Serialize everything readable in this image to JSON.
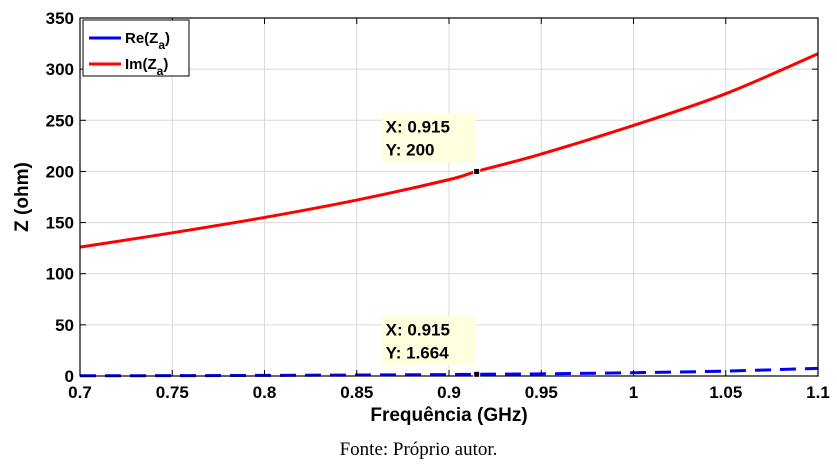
{
  "chart_data": {
    "type": "line",
    "xlabel": "Frequência (GHz)",
    "ylabel": "Z (ohm)",
    "xlim": [
      0.7,
      1.1
    ],
    "ylim": [
      0,
      350
    ],
    "xticks": [
      "0.7",
      "0.75",
      "0.8",
      "0.85",
      "0.9",
      "0.95",
      "1",
      "1.05",
      "1.1"
    ],
    "yticks": [
      "0",
      "50",
      "100",
      "150",
      "200",
      "250",
      "300",
      "350"
    ],
    "grid": true,
    "legend_position": "top-left",
    "series": [
      {
        "name": "Re(Z_a)",
        "name_base": "Re(Z",
        "name_sub": "a",
        "name_end": ")",
        "color": "#0000ff",
        "style": "dashed",
        "x": [
          0.7,
          0.75,
          0.8,
          0.85,
          0.9,
          0.915,
          0.95,
          1.0,
          1.05,
          1.1
        ],
        "y": [
          0.2,
          0.35,
          0.6,
          0.95,
          1.4,
          1.664,
          2.1,
          3.2,
          4.8,
          7.5
        ]
      },
      {
        "name": "Im(Z_a)",
        "name_base": "Im(Z",
        "name_sub": "a",
        "name_end": ")",
        "color": "#ff0000",
        "style": "solid",
        "x": [
          0.7,
          0.75,
          0.8,
          0.85,
          0.9,
          0.915,
          0.95,
          1.0,
          1.05,
          1.1
        ],
        "y": [
          126,
          140,
          155,
          172,
          192,
          200,
          217,
          245,
          276,
          315
        ]
      }
    ],
    "annotations": [
      {
        "x": 0.915,
        "y": 200,
        "line1": "X: 0.915",
        "line2": "Y: 200"
      },
      {
        "x": 0.915,
        "y": 1.664,
        "line1": "X: 0.915",
        "line2": "Y: 1.664"
      }
    ]
  },
  "caption": "Fonte: Próprio autor."
}
